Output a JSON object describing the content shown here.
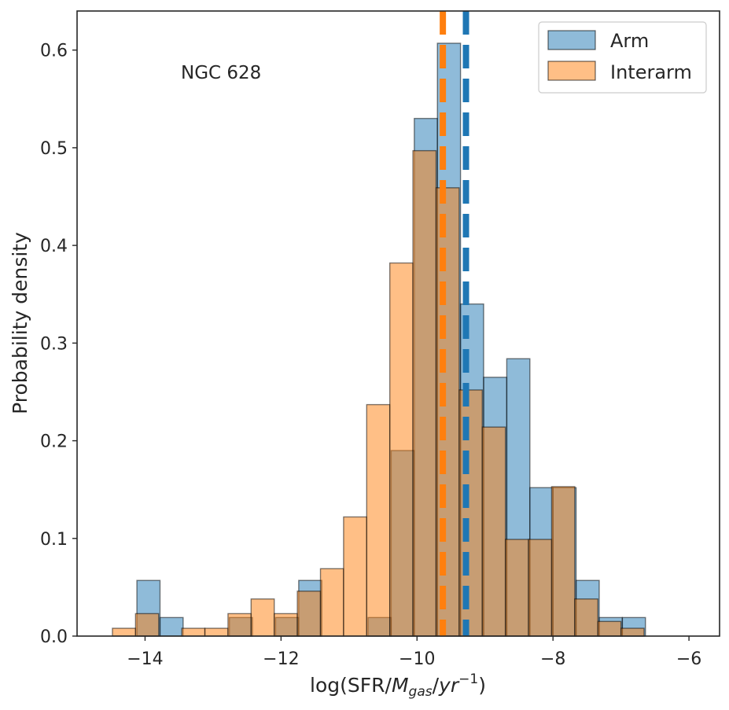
{
  "chart_data": {
    "type": "bar",
    "subtype": "step-histogram",
    "title": "",
    "annotation": "NGC 628",
    "xlabel_prefix": "log(SFR/",
    "xlabel_m": "M",
    "xlabel_sub": "gas",
    "xlabel_slash": "/",
    "xlabel_yr": "yr",
    "xlabel_sup": "−1",
    "xlabel_suffix": ")",
    "ylabel": "Probability density",
    "xlim": [
      -15.0,
      -5.55
    ],
    "ylim": [
      0,
      0.64
    ],
    "xticks": [
      -14,
      -12,
      -10,
      -8,
      -6
    ],
    "xtick_labels": [
      "−14",
      "−12",
      "−10",
      "−8",
      "−6"
    ],
    "yticks": [
      0.0,
      0.1,
      0.2,
      0.3,
      0.4,
      0.5,
      0.6
    ],
    "ytick_labels": [
      "0.0",
      "0.1",
      "0.2",
      "0.3",
      "0.4",
      "0.5",
      "0.6"
    ],
    "legend_position": "upper right",
    "series": [
      {
        "name": "Arm",
        "color": "#1f77b4",
        "fill_opacity": 0.5,
        "bin_edges": [
          -14.12,
          -13.78,
          -13.44,
          -13.1,
          -12.76,
          -12.42,
          -12.08,
          -11.74,
          -11.4,
          -11.06,
          -10.72,
          -10.38,
          -10.04,
          -9.7,
          -9.36,
          -9.02,
          -8.68,
          -8.34,
          -8.0,
          -7.66,
          -7.32,
          -6.98,
          -6.64,
          -6.3
        ],
        "values": [
          0.057,
          0.019,
          0.0,
          0.0,
          0.019,
          0.0,
          0.019,
          0.057,
          0.0,
          0.0,
          0.019,
          0.19,
          0.53,
          0.607,
          0.34,
          0.265,
          0.284,
          0.152,
          0.152,
          0.057,
          0.019,
          0.019,
          0.0
        ]
      },
      {
        "name": "Interarm",
        "color": "#ff7f0e",
        "fill_opacity": 0.5,
        "bin_edges": [
          -14.48,
          -14.14,
          -13.8,
          -13.46,
          -13.12,
          -12.78,
          -12.44,
          -12.1,
          -11.76,
          -11.42,
          -11.08,
          -10.74,
          -10.4,
          -10.06,
          -9.72,
          -9.38,
          -9.04,
          -8.7,
          -8.36,
          -8.02,
          -7.68,
          -7.34,
          -7.0,
          -6.66,
          -6.32
        ],
        "values": [
          0.008,
          0.023,
          0.0,
          0.008,
          0.008,
          0.023,
          0.038,
          0.023,
          0.046,
          0.069,
          0.122,
          0.237,
          0.382,
          0.497,
          0.459,
          0.252,
          0.214,
          0.099,
          0.099,
          0.153,
          0.038,
          0.015,
          0.008,
          0.0
        ]
      }
    ],
    "vlines": [
      {
        "series": "Interarm",
        "x": -9.62,
        "color": "#ff7f0e",
        "style": "dashed"
      },
      {
        "series": "Arm",
        "x": -9.28,
        "color": "#1f77b4",
        "style": "dashed"
      }
    ]
  }
}
